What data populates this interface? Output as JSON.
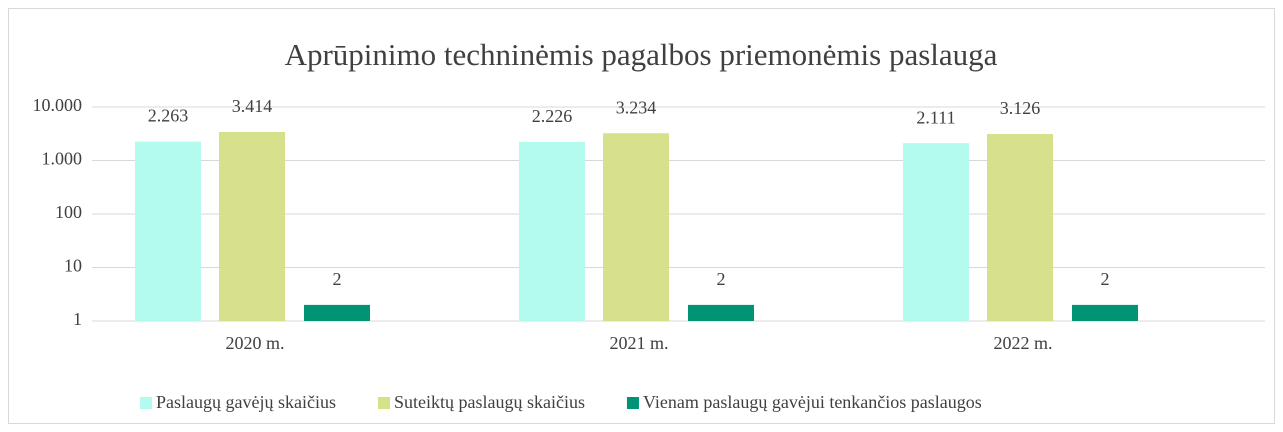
{
  "chart_data": {
    "type": "bar",
    "title": "Aprūpinimo techninėmis pagalbos priemonėmis paslauga",
    "categories": [
      "2020 m.",
      "2021 m.",
      "2022 m."
    ],
    "series": [
      {
        "name": "Paslaugų gavėjų skaičius",
        "color": "#b3fbef",
        "values": [
          2263,
          2226,
          2111
        ],
        "value_labels": [
          "2.263",
          "2.226",
          "2.111"
        ]
      },
      {
        "name": "Suteiktų paslaugų skaičius",
        "color": "#d7e08a",
        "values": [
          3414,
          3234,
          3126
        ],
        "value_labels": [
          "3.414",
          "3.234",
          "3.126"
        ]
      },
      {
        "name": "Vienam paslaugų gavėjui tenkančios paslaugos",
        "color": "#009474",
        "values": [
          2,
          2,
          2
        ]
      }
    ],
    "ylim": [
      1,
      10000
    ],
    "log_scale": true,
    "yticks": [
      1,
      10,
      100,
      {
        "value": 1000,
        "label": "1.000"
      },
      {
        "value": 10000,
        "label": "10.000"
      }
    ],
    "grid": true,
    "legend": "bottom"
  }
}
